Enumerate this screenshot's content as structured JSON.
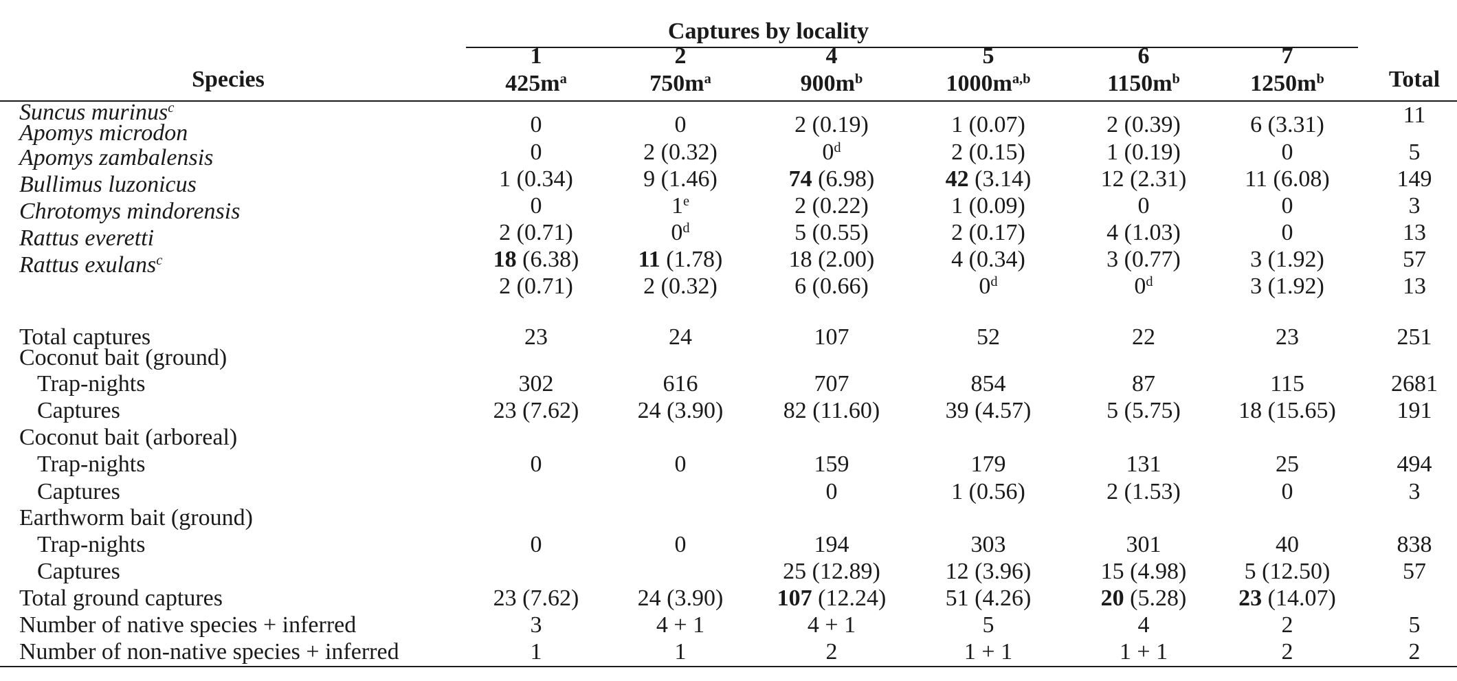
{
  "table": {
    "group_header": "Captures by locality",
    "species_header": "Species",
    "total_header": "Total",
    "localities": [
      {
        "num": "1",
        "elev": "425m",
        "sup": "a"
      },
      {
        "num": "2",
        "elev": "750m",
        "sup": "a"
      },
      {
        "num": "4",
        "elev": "900m",
        "sup": "b"
      },
      {
        "num": "5",
        "elev": "1000m",
        "sup": "a,b"
      },
      {
        "num": "6",
        "elev": "1150m",
        "sup": "b"
      },
      {
        "num": "7",
        "elev": "1250m",
        "sup": "b"
      }
    ],
    "rows": [
      {
        "label": "Suncus murinus",
        "label_sup": "c",
        "italic": true,
        "cells": [
          {
            "v": "0"
          },
          {
            "v": "0"
          },
          {
            "v": "2 (0.19)"
          },
          {
            "v": "1 (0.07)"
          },
          {
            "v": "2 (0.39)"
          },
          {
            "v": "6 (3.31)"
          }
        ],
        "total": "11"
      },
      {
        "label": "Apomys microdon",
        "italic": true,
        "cells": [
          {
            "v": "0"
          },
          {
            "v": "2 (0.32)"
          },
          {
            "v": "0",
            "sup": "d"
          },
          {
            "v": "2 (0.15)"
          },
          {
            "v": "1 (0.19)"
          },
          {
            "v": "0"
          }
        ],
        "total": "5"
      },
      {
        "label": "Apomys zambalensis",
        "italic": true,
        "cells": [
          {
            "v": "1 (0.34)"
          },
          {
            "v": "9 (1.46)"
          },
          {
            "b": "74",
            "v": " (6.98)"
          },
          {
            "b": "42",
            "v": " (3.14)"
          },
          {
            "v": "12 (2.31)"
          },
          {
            "v": "11 (6.08)"
          }
        ],
        "total": "149"
      },
      {
        "label": "Bullimus luzonicus",
        "italic": true,
        "cells": [
          {
            "v": "0"
          },
          {
            "v": "1",
            "sup": "e"
          },
          {
            "v": "2 (0.22)"
          },
          {
            "v": "1 (0.09)"
          },
          {
            "v": "0"
          },
          {
            "v": "0"
          }
        ],
        "total": "3"
      },
      {
        "label": "Chrotomys mindorensis",
        "italic": true,
        "cells": [
          {
            "v": "2 (0.71)"
          },
          {
            "v": "0",
            "sup": "d"
          },
          {
            "v": "5 (0.55)"
          },
          {
            "v": "2 (0.17)"
          },
          {
            "v": "4 (1.03)"
          },
          {
            "v": "0"
          }
        ],
        "total": "13"
      },
      {
        "label": "Rattus everetti",
        "italic": true,
        "cells": [
          {
            "b": "18",
            "v": " (6.38)"
          },
          {
            "b": "11",
            "v": " (1.78)"
          },
          {
            "v": "18 (2.00)"
          },
          {
            "v": "4 (0.34)"
          },
          {
            "v": "3 (0.77)"
          },
          {
            "v": "3 (1.92)"
          }
        ],
        "total": "57"
      },
      {
        "label": "Rattus exulans",
        "label_sup": "c",
        "italic": true,
        "cells": [
          {
            "v": "2 (0.71)"
          },
          {
            "v": "2 (0.32)"
          },
          {
            "v": "6 (0.66)"
          },
          {
            "v": "0",
            "sup": "d"
          },
          {
            "v": "0",
            "sup": "d"
          },
          {
            "v": "3 (1.92)"
          }
        ],
        "total": "13"
      },
      {
        "label": "Total captures",
        "cells": [
          {
            "v": "23"
          },
          {
            "v": "24"
          },
          {
            "v": "107"
          },
          {
            "v": "52"
          },
          {
            "v": "22"
          },
          {
            "v": "23"
          }
        ],
        "total": "251"
      },
      {
        "label": "Coconut bait (ground)",
        "cells": [],
        "total": ""
      },
      {
        "label": "Trap-nights",
        "indent": true,
        "cells": [
          {
            "v": "302"
          },
          {
            "v": "616"
          },
          {
            "v": "707"
          },
          {
            "v": "854"
          },
          {
            "v": "87"
          },
          {
            "v": "115"
          }
        ],
        "total": "2681"
      },
      {
        "label": "Captures",
        "indent": true,
        "cells": [
          {
            "v": "23 (7.62)"
          },
          {
            "v": "24 (3.90)"
          },
          {
            "v": "82 (11.60)"
          },
          {
            "v": "39 (4.57)"
          },
          {
            "v": "5 (5.75)"
          },
          {
            "v": "18 (15.65)"
          }
        ],
        "total": "191"
      },
      {
        "label": "Coconut bait (arboreal)",
        "cells": [],
        "total": ""
      },
      {
        "label": "Trap-nights",
        "indent": true,
        "cells": [
          {
            "v": "0"
          },
          {
            "v": "0"
          },
          {
            "v": "159"
          },
          {
            "v": "179"
          },
          {
            "v": "131"
          },
          {
            "v": "25"
          }
        ],
        "total": "494"
      },
      {
        "label": "Captures",
        "indent": true,
        "cells": [
          {
            "v": ""
          },
          {
            "v": ""
          },
          {
            "v": "0"
          },
          {
            "v": "1 (0.56)"
          },
          {
            "v": "2 (1.53)"
          },
          {
            "v": "0"
          }
        ],
        "total": "3"
      },
      {
        "label": "Earthworm bait (ground)",
        "cells": [],
        "total": ""
      },
      {
        "label": "Trap-nights",
        "indent": true,
        "cells": [
          {
            "v": "0"
          },
          {
            "v": "0"
          },
          {
            "v": "194"
          },
          {
            "v": "303"
          },
          {
            "v": "301"
          },
          {
            "v": "40"
          }
        ],
        "total": "838"
      },
      {
        "label": "Captures",
        "indent": true,
        "cells": [
          {
            "v": ""
          },
          {
            "v": ""
          },
          {
            "v": "25 (12.89)"
          },
          {
            "v": "12 (3.96)"
          },
          {
            "v": "15 (4.98)"
          },
          {
            "v": "5 (12.50)"
          }
        ],
        "total": "57"
      },
      {
        "label": "Total ground captures",
        "cells": [
          {
            "v": "23 (7.62)"
          },
          {
            "v": "24 (3.90)"
          },
          {
            "b": "107",
            "v": " (12.24)"
          },
          {
            "v": "51 (4.26)"
          },
          {
            "b": "20",
            "v": " (5.28)"
          },
          {
            "b": "23",
            "v": " (14.07)"
          }
        ],
        "total": ""
      },
      {
        "label": "Number of native species + inferred",
        "cells": [
          {
            "v": "3"
          },
          {
            "v": "4 + 1"
          },
          {
            "v": "4 + 1"
          },
          {
            "v": "5"
          },
          {
            "v": "4"
          },
          {
            "v": "2"
          }
        ],
        "total": "5"
      },
      {
        "label": "Number of non-native species + inferred",
        "cells": [
          {
            "v": "1"
          },
          {
            "v": "1"
          },
          {
            "v": "2"
          },
          {
            "v": "1 + 1"
          },
          {
            "v": "1 + 1"
          },
          {
            "v": "2"
          }
        ],
        "total": "2"
      }
    ]
  }
}
